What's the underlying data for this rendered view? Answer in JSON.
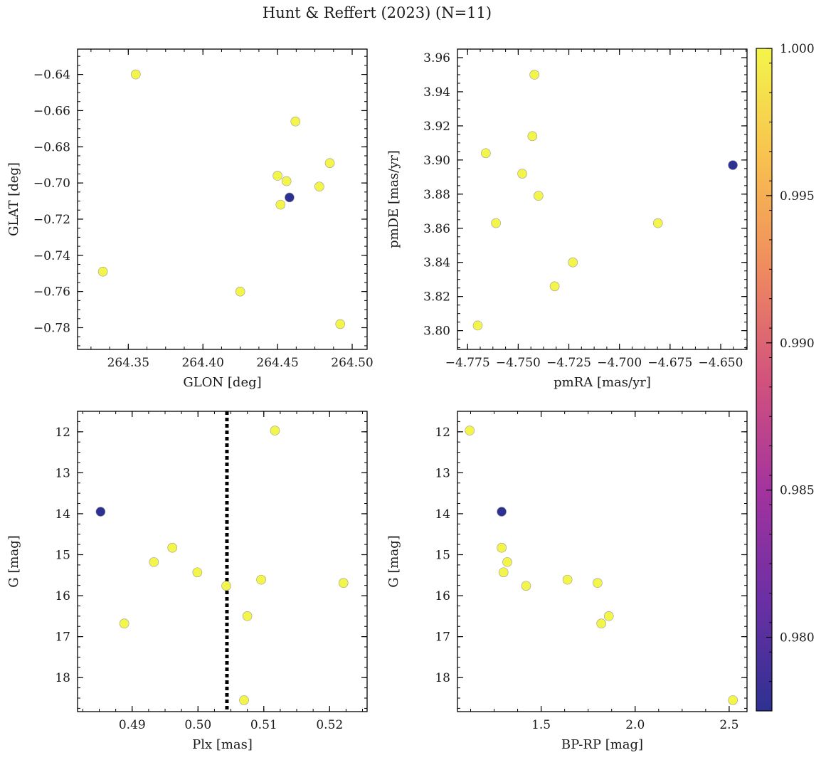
{
  "figure": {
    "title": "Hunt & Reffert (2023) (N=11)"
  },
  "colormap": {
    "name": "plasma",
    "colors": [
      "#2d3192",
      "#6b2fa4",
      "#a3339e",
      "#d2527d",
      "#ef8a5f",
      "#f8c14f",
      "#f3f54b"
    ]
  },
  "colorbar": {
    "vmin": 0.9775,
    "vmax": 1.0,
    "ticks": [
      0.98,
      0.985,
      0.99,
      0.995,
      1.0
    ],
    "tick_labels": [
      "0.980",
      "0.985",
      "0.990",
      "0.995",
      "1.000"
    ]
  },
  "chart_data": [
    {
      "type": "scatter",
      "xlabel": "GLON [deg]",
      "ylabel": "GLAT [deg]",
      "xlim": [
        264.316,
        264.51
      ],
      "ylim": [
        -0.792,
        -0.626
      ],
      "xticks": [
        264.35,
        264.4,
        264.45,
        264.5
      ],
      "xtick_labels": [
        "264.35",
        "264.40",
        "264.45",
        "264.50"
      ],
      "yticks": [
        -0.64,
        -0.66,
        -0.68,
        -0.7,
        -0.72,
        -0.74,
        -0.76,
        -0.78
      ],
      "ytick_labels": [
        "−0.64",
        "−0.66",
        "−0.68",
        "−0.70",
        "−0.72",
        "−0.74",
        "−0.76",
        "−0.78"
      ],
      "x": [
        264.355,
        264.333,
        264.462,
        264.485,
        264.45,
        264.456,
        264.478,
        264.452,
        264.425,
        264.492,
        264.458
      ],
      "y": [
        -0.64,
        -0.749,
        -0.666,
        -0.689,
        -0.696,
        -0.699,
        -0.702,
        -0.712,
        -0.76,
        -0.778,
        -0.708
      ],
      "c": [
        1.0,
        1.0,
        1.0,
        1.0,
        1.0,
        1.0,
        1.0,
        1.0,
        1.0,
        1.0,
        0.9775
      ]
    },
    {
      "type": "scatter",
      "xlabel": "pmRA [mas/yr]",
      "ylabel": "pmDE [mas/yr]",
      "xlim": [
        -4.78,
        -4.637
      ],
      "ylim": [
        3.789,
        3.965
      ],
      "xticks": [
        -4.775,
        -4.75,
        -4.725,
        -4.7,
        -4.675,
        -4.65
      ],
      "xtick_labels": [
        "−4.775",
        "−4.750",
        "−4.725",
        "−4.700",
        "−4.675",
        "−4.650"
      ],
      "yticks": [
        3.8,
        3.82,
        3.84,
        3.86,
        3.88,
        3.9,
        3.92,
        3.94,
        3.96
      ],
      "ytick_labels": [
        "3.80",
        "3.82",
        "3.84",
        "3.86",
        "3.88",
        "3.90",
        "3.92",
        "3.94",
        "3.96"
      ],
      "x": [
        -4.77,
        -4.766,
        -4.761,
        -4.748,
        -4.743,
        -4.742,
        -4.74,
        -4.732,
        -4.723,
        -4.681,
        -4.644
      ],
      "y": [
        3.803,
        3.904,
        3.863,
        3.892,
        3.914,
        3.95,
        3.879,
        3.826,
        3.84,
        3.863,
        3.897
      ],
      "c": [
        1.0,
        1.0,
        1.0,
        1.0,
        1.0,
        1.0,
        1.0,
        1.0,
        1.0,
        1.0,
        0.9775
      ]
    },
    {
      "type": "scatter",
      "xlabel": "Plx [mas]",
      "ylabel": "G [mag]",
      "xlim": [
        0.4817,
        0.5257
      ],
      "ylim": [
        18.83,
        11.5
      ],
      "xticks": [
        0.49,
        0.5,
        0.51,
        0.52
      ],
      "xtick_labels": [
        "0.49",
        "0.50",
        "0.51",
        "0.52"
      ],
      "yticks": [
        12,
        13,
        14,
        15,
        16,
        17,
        18
      ],
      "ytick_labels": [
        "12",
        "13",
        "14",
        "15",
        "16",
        "17",
        "18"
      ],
      "x": [
        0.4852,
        0.4888,
        0.4933,
        0.4961,
        0.4999,
        0.5043,
        0.507,
        0.5075,
        0.5096,
        0.5117,
        0.5221
      ],
      "y": [
        13.95,
        16.68,
        15.18,
        14.83,
        15.43,
        15.76,
        18.55,
        16.5,
        15.61,
        11.97,
        15.69
      ],
      "c": [
        0.9775,
        1.0,
        1.0,
        1.0,
        1.0,
        1.0,
        1.0,
        1.0,
        1.0,
        1.0,
        1.0
      ],
      "vline": {
        "x": 0.5044,
        "style": "dotted"
      }
    },
    {
      "type": "scatter",
      "xlabel": "BP-RP [mag]",
      "ylabel": "G [mag]",
      "xlim": [
        1.055,
        2.595
      ],
      "ylim": [
        18.83,
        11.5
      ],
      "xticks": [
        1.5,
        2.0,
        2.5
      ],
      "xtick_labels": [
        "1.5",
        "2.0",
        "2.5"
      ],
      "yticks": [
        12,
        13,
        14,
        15,
        16,
        17,
        18
      ],
      "ytick_labels": [
        "12",
        "13",
        "14",
        "15",
        "16",
        "17",
        "18"
      ],
      "x": [
        1.12,
        1.29,
        1.29,
        1.3,
        1.32,
        1.42,
        1.64,
        1.8,
        1.82,
        1.86,
        2.52
      ],
      "y": [
        11.97,
        13.95,
        14.83,
        15.43,
        15.18,
        15.76,
        15.61,
        15.69,
        16.68,
        16.5,
        18.55
      ],
      "c": [
        1.0,
        0.9775,
        1.0,
        1.0,
        1.0,
        1.0,
        1.0,
        1.0,
        1.0,
        1.0,
        1.0
      ]
    }
  ]
}
